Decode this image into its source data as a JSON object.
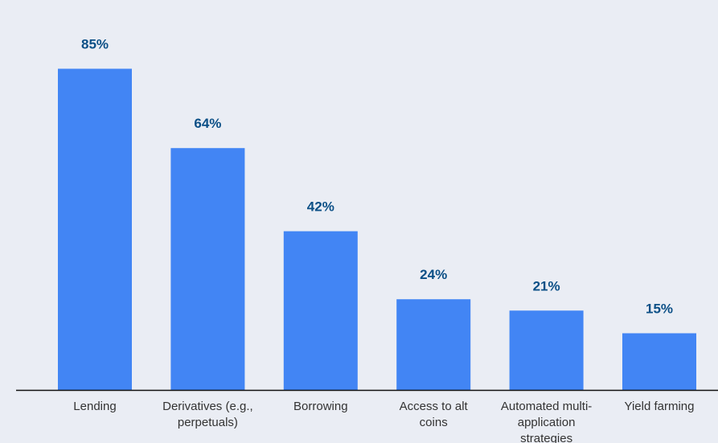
{
  "chart_data": {
    "type": "bar",
    "categories": [
      "Lending",
      "Derivatives (e.g., perpetuals)",
      "Borrowing",
      "Access to alt coins",
      "Automated multi-application strategies",
      "Yield farming"
    ],
    "category_lines": [
      [
        "Lending"
      ],
      [
        "Derivatives (e.g.,",
        "perpetuals)"
      ],
      [
        "Borrowing"
      ],
      [
        "Access to alt",
        "coins"
      ],
      [
        "Automated multi-",
        "application",
        "strategies"
      ],
      [
        "Yield farming"
      ]
    ],
    "values": [
      85,
      64,
      42,
      24,
      21,
      15
    ],
    "value_labels": [
      "85%",
      "64%",
      "42%",
      "24%",
      "21%",
      "15%"
    ],
    "title": "",
    "xlabel": "",
    "ylabel": "",
    "ylim": [
      0,
      100
    ],
    "grid": false,
    "legend": "none",
    "colors": {
      "bar": "#4285f4",
      "value_label": "#0b4f86",
      "background": "#eaedf4"
    }
  }
}
